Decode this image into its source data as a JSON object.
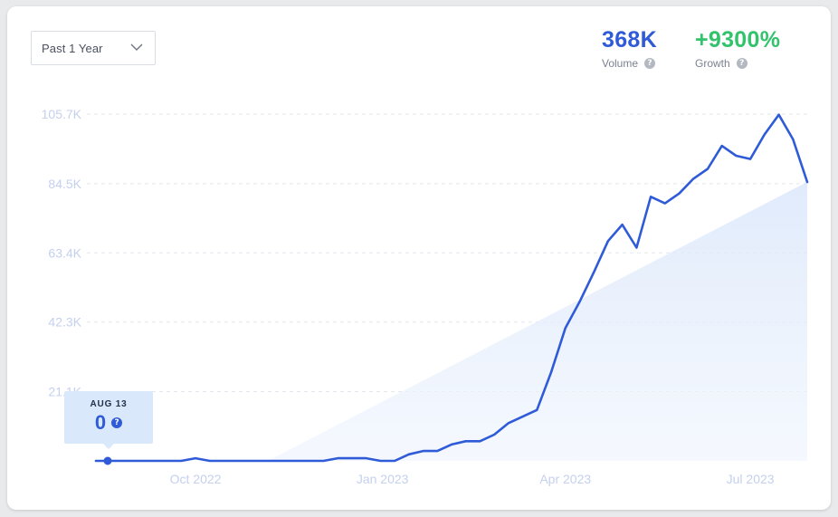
{
  "controls": {
    "range_label": "Past 1 Year"
  },
  "stats": {
    "volume": {
      "value": "368K",
      "label": "Volume",
      "color": "#2f5bd8"
    },
    "growth": {
      "value": "+9300%",
      "label": "Growth",
      "color": "#32c36c"
    }
  },
  "tooltip": {
    "date": "AUG 13",
    "value": "0"
  },
  "chart_data": {
    "type": "line",
    "title": "",
    "xlabel": "",
    "ylabel": "",
    "grid": true,
    "ylim": [
      0,
      105700
    ],
    "y_ticks": [
      {
        "value": 21100,
        "label": "21.1K"
      },
      {
        "value": 42300,
        "label": "42.3K"
      },
      {
        "value": 63400,
        "label": "63.4K"
      },
      {
        "value": 84500,
        "label": "84.5K"
      },
      {
        "value": 105700,
        "label": "105.7K"
      }
    ],
    "x_ticks": [
      {
        "x": "2022-10-01",
        "label": "Oct 2022"
      },
      {
        "x": "2023-01-01",
        "label": "Jan 2023"
      },
      {
        "x": "2023-04-01",
        "label": "Apr 2023"
      },
      {
        "x": "2023-07-01",
        "label": "Jul 2023"
      }
    ],
    "series": [
      {
        "color": "#2f5bd8",
        "points": [
          [
            "2022-08-13",
            0
          ],
          [
            "2022-08-20",
            0
          ],
          [
            "2022-08-27",
            0
          ],
          [
            "2022-09-03",
            0
          ],
          [
            "2022-09-10",
            0
          ],
          [
            "2022-09-17",
            0
          ],
          [
            "2022-09-24",
            0
          ],
          [
            "2022-10-01",
            800
          ],
          [
            "2022-10-08",
            0
          ],
          [
            "2022-10-15",
            0
          ],
          [
            "2022-10-22",
            0
          ],
          [
            "2022-10-29",
            0
          ],
          [
            "2022-11-05",
            0
          ],
          [
            "2022-11-12",
            0
          ],
          [
            "2022-11-19",
            0
          ],
          [
            "2022-11-26",
            0
          ],
          [
            "2022-12-03",
            0
          ],
          [
            "2022-12-10",
            800
          ],
          [
            "2022-12-17",
            800
          ],
          [
            "2022-12-24",
            800
          ],
          [
            "2022-12-31",
            0
          ],
          [
            "2023-01-07",
            0
          ],
          [
            "2023-01-14",
            2000
          ],
          [
            "2023-01-21",
            3000
          ],
          [
            "2023-01-28",
            3000
          ],
          [
            "2023-02-04",
            5000
          ],
          [
            "2023-02-11",
            6000
          ],
          [
            "2023-02-18",
            6000
          ],
          [
            "2023-02-25",
            8000
          ],
          [
            "2023-03-04",
            11500
          ],
          [
            "2023-03-11",
            13500
          ],
          [
            "2023-03-18",
            15500
          ],
          [
            "2023-03-25",
            27000
          ],
          [
            "2023-04-01",
            40500
          ],
          [
            "2023-04-08",
            48500
          ],
          [
            "2023-04-15",
            57500
          ],
          [
            "2023-04-22",
            67000
          ],
          [
            "2023-04-29",
            72000
          ],
          [
            "2023-05-06",
            65000
          ],
          [
            "2023-05-13",
            80500
          ],
          [
            "2023-05-20",
            78500
          ],
          [
            "2023-05-27",
            81500
          ],
          [
            "2023-06-03",
            86000
          ],
          [
            "2023-06-10",
            89000
          ],
          [
            "2023-06-17",
            96000
          ],
          [
            "2023-06-24",
            93000
          ],
          [
            "2023-07-01",
            92000
          ],
          [
            "2023-07-08",
            99500
          ],
          [
            "2023-07-15",
            105500
          ],
          [
            "2023-07-22",
            98000
          ],
          [
            "2023-07-29",
            85000
          ]
        ]
      }
    ],
    "highlight": {
      "x": "2022-08-13",
      "y": 0
    }
  }
}
